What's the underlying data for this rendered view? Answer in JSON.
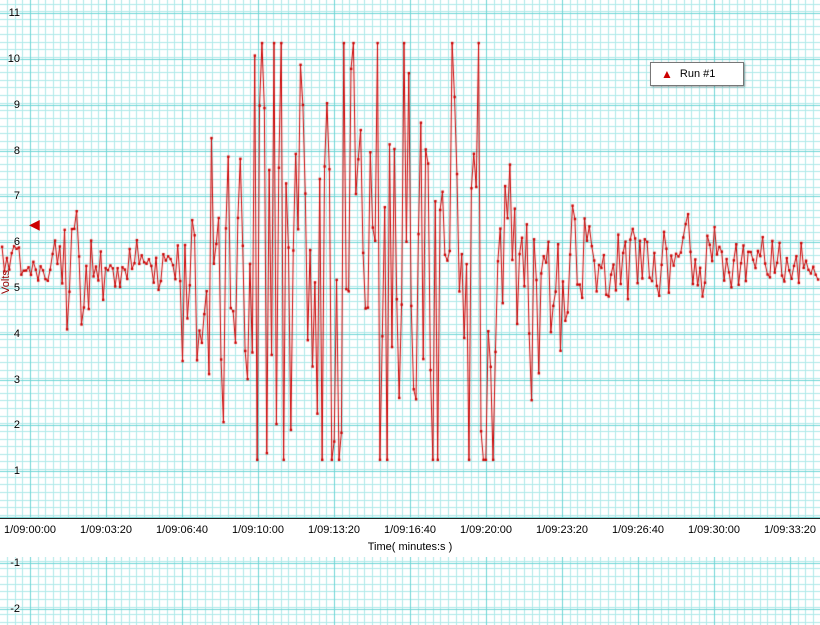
{
  "chart_data": {
    "type": "line",
    "title": "",
    "xlabel": "Time( minutes:s )",
    "ylabel": "Volts",
    "x_tick_labels": [
      "1/09:00:00",
      "1/09:03:20",
      "1/09:06:40",
      "1/09:10:00",
      "1/09:13:20",
      "1/09:16:40",
      "1/09:20:00",
      "1/09:23:20",
      "1/09:26:40",
      "1/09:30:00",
      "1/09:33:20"
    ],
    "y_tick_values": [
      11,
      10,
      9,
      8,
      7,
      6,
      5,
      4,
      3,
      2,
      1,
      -1,
      -2
    ],
    "ylim": [
      -2,
      11
    ],
    "grid": {
      "minor_color": "#aee9e9",
      "major_color": "#6fd6d6",
      "background": "#ffffff"
    },
    "legend": {
      "position": "top-right",
      "entries": [
        {
          "label": "Run #1",
          "marker": "triangle",
          "marker_glyph": "▲",
          "color": "#cc0000"
        }
      ]
    },
    "y_axis_marker": {
      "value": 6.4,
      "color": "#cc0000",
      "glyph": "◀"
    },
    "series": [
      {
        "name": "Run #1",
        "color": "#cc0000",
        "baseline": 5.55,
        "clip_low": 1.25,
        "clip_high": 10.35,
        "n_points": 340,
        "seed": 987241,
        "noise_gain": 1.5,
        "spike_chance": 0.07,
        "spike_gain": 1.7,
        "envelope": [
          [
            0.0,
            0.35
          ],
          [
            0.06,
            0.4
          ],
          [
            0.08,
            1.1
          ],
          [
            0.095,
            1.3
          ],
          [
            0.11,
            0.9
          ],
          [
            0.14,
            0.5
          ],
          [
            0.19,
            0.45
          ],
          [
            0.215,
            0.8
          ],
          [
            0.228,
            3.5
          ],
          [
            0.245,
            2.2
          ],
          [
            0.26,
            2.6
          ],
          [
            0.285,
            3.2
          ],
          [
            0.31,
            5.0
          ],
          [
            0.37,
            5.0
          ],
          [
            0.38,
            3.4
          ],
          [
            0.4,
            5.3
          ],
          [
            0.47,
            5.3
          ],
          [
            0.485,
            4.2
          ],
          [
            0.5,
            5.2
          ],
          [
            0.55,
            5.2
          ],
          [
            0.562,
            3.0
          ],
          [
            0.575,
            4.8
          ],
          [
            0.605,
            4.8
          ],
          [
            0.625,
            2.2
          ],
          [
            0.645,
            1.6
          ],
          [
            0.67,
            1.9
          ],
          [
            0.7,
            1.2
          ],
          [
            0.745,
            0.9
          ],
          [
            0.8,
            0.7
          ],
          [
            0.86,
            0.55
          ],
          [
            0.92,
            0.45
          ],
          [
            1.0,
            0.35
          ]
        ]
      }
    ]
  }
}
